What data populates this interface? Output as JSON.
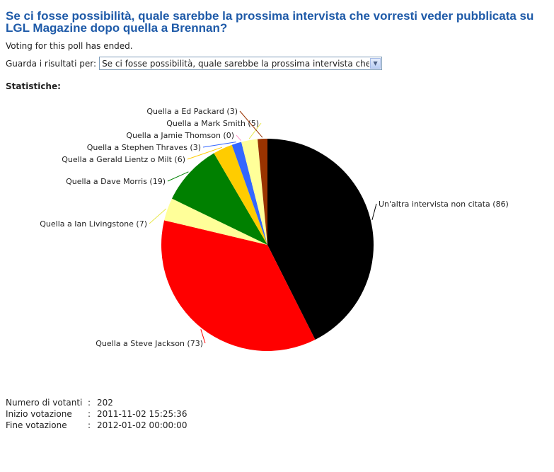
{
  "title": "Se ci fosse possibilità, quale sarebbe la prossima intervista che vorresti veder pubblicata su LGL Magazine dopo quella a Brennan?",
  "status": "Voting for this poll has ended.",
  "results_selector": {
    "label": "Guarda i risultati per:",
    "value": "Se ci fosse possibilità, quale sarebbe la prossima intervista che vorresti veder pubblicata su LGL Magazine dopo quella a Brennan?"
  },
  "stats_heading": "Statistiche:",
  "chart_data": {
    "type": "pie",
    "title": "",
    "slices": [
      {
        "label": "Un'altra intervista non citata",
        "value": 86,
        "color": "#000000"
      },
      {
        "label": "Quella a Steve Jackson",
        "value": 73,
        "color": "#ff0000"
      },
      {
        "label": "Quella a Ian Livingstone",
        "value": 7,
        "color": "#ffff99"
      },
      {
        "label": "Quella a Dave Morris",
        "value": 19,
        "color": "#008000"
      },
      {
        "label": "Quella a Gerald Lientz o Milt",
        "value": 6,
        "color": "#ffcc00"
      },
      {
        "label": "Quella a Stephen Thraves",
        "value": 3,
        "color": "#3366ff"
      },
      {
        "label": "Quella a Jamie Thomson",
        "value": 0,
        "color": "#ff99cc"
      },
      {
        "label": "Quella a Mark Smith",
        "value": 5,
        "color": "#ffff99"
      },
      {
        "label": "Quella a Ed Packard",
        "value": 3,
        "color": "#993300"
      }
    ]
  },
  "footer": {
    "voters_label": "Numero di votanti",
    "voters_value": "202",
    "start_label": "Inizio votazione",
    "start_value": "2011-11-02 15:25:36",
    "end_label": "Fine votazione",
    "end_value": "2012-01-02 00:00:00"
  }
}
